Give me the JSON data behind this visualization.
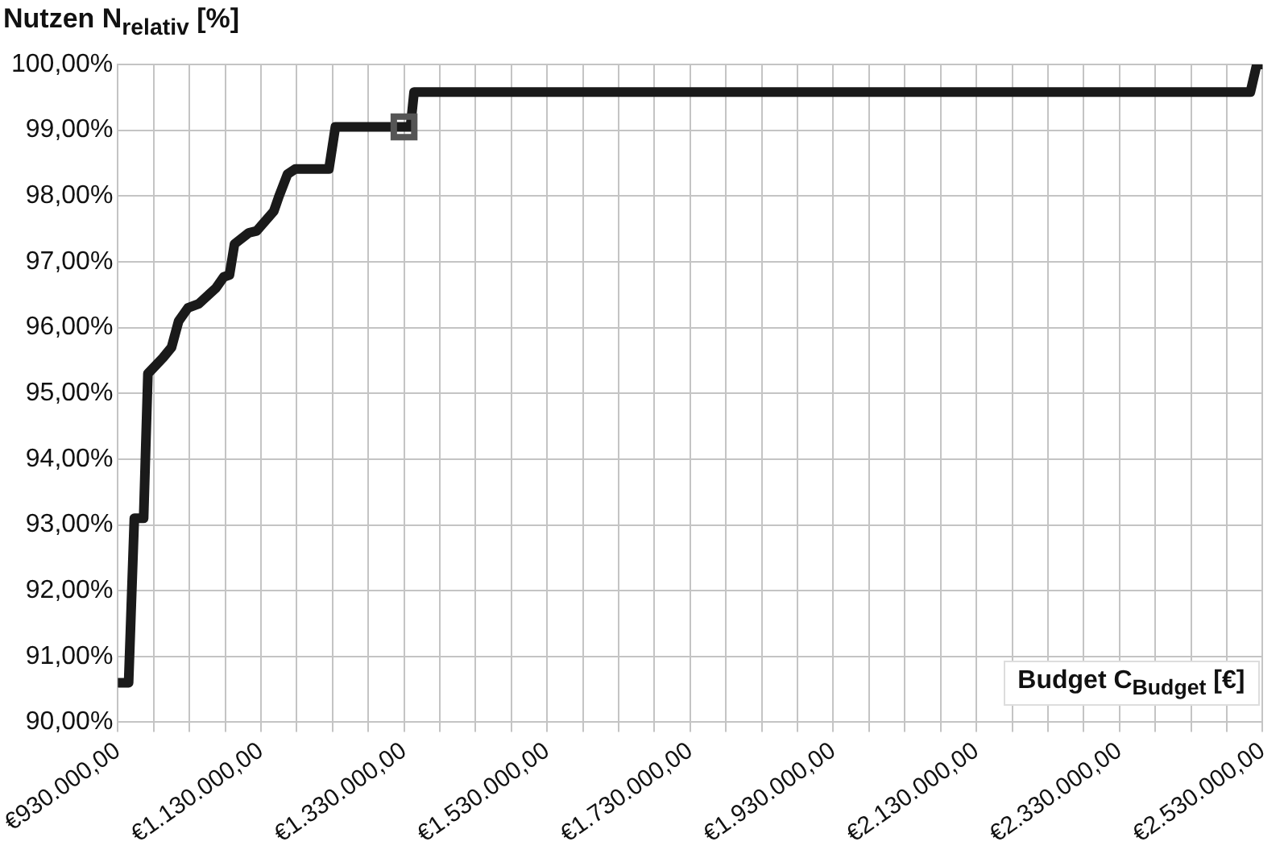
{
  "chart_data": {
    "type": "line",
    "title": "Nutzen N$_{relativ}$ [%]",
    "xlabel": "Budget C$_{Budget}$ [€]",
    "series": [
      {
        "color": "#1a1a1a",
        "x": [
          931000,
          945000,
          953000,
          966000,
          972000,
          993000,
          1005000,
          1015000,
          1028000,
          1043000,
          1067000,
          1078000,
          1086000,
          1093000,
          1113000,
          1124000,
          1148000,
          1155000,
          1167000,
          1178000,
          1225000,
          1234000,
          1329000,
          1339000,
          1344000,
          2513000,
          2522000,
          2530000
        ],
        "values": [
          90.6,
          90.6,
          93.1,
          93.1,
          95.3,
          95.54,
          95.7,
          96.1,
          96.3,
          96.36,
          96.6,
          96.77,
          96.8,
          97.27,
          97.44,
          97.47,
          97.77,
          97.99,
          98.33,
          98.41,
          98.41,
          99.05,
          99.05,
          99.05,
          99.58,
          99.58,
          100,
          100
        ]
      },
      {
        "type": "scatter",
        "marker": "square",
        "color": "#555555",
        "x": [
          1330000
        ],
        "values": [
          99.05
        ]
      }
    ],
    "xlim": [
      930000,
      2530000
    ],
    "xticks": [
      {
        "value": 930000,
        "label": "€930.000,00"
      },
      {
        "value": 980000,
        "label": null
      },
      {
        "value": 1030000,
        "label": null
      },
      {
        "value": 1080000,
        "label": null
      },
      {
        "value": 1130000,
        "label": "€1.130.000,00"
      },
      {
        "value": 1180000,
        "label": null
      },
      {
        "value": 1230000,
        "label": null
      },
      {
        "value": 1280000,
        "label": null
      },
      {
        "value": 1330000,
        "label": "€1.330.000,00"
      },
      {
        "value": 1380000,
        "label": null
      },
      {
        "value": 1430000,
        "label": null
      },
      {
        "value": 1480000,
        "label": null
      },
      {
        "value": 1530000,
        "label": "€1.530.000,00"
      },
      {
        "value": 1580000,
        "label": null
      },
      {
        "value": 1630000,
        "label": null
      },
      {
        "value": 1680000,
        "label": null
      },
      {
        "value": 1730000,
        "label": "€1.730.000,00"
      },
      {
        "value": 1780000,
        "label": null
      },
      {
        "value": 1830000,
        "label": null
      },
      {
        "value": 1880000,
        "label": null
      },
      {
        "value": 1930000,
        "label": "€1.930.000,00"
      },
      {
        "value": 1980000,
        "label": null
      },
      {
        "value": 2030000,
        "label": null
      },
      {
        "value": 2080000,
        "label": null
      },
      {
        "value": 2130000,
        "label": "€2.130.000,00"
      },
      {
        "value": 2180000,
        "label": null
      },
      {
        "value": 2230000,
        "label": null
      },
      {
        "value": 2280000,
        "label": null
      },
      {
        "value": 2330000,
        "label": "€2.330.000,00"
      },
      {
        "value": 2380000,
        "label": null
      },
      {
        "value": 2430000,
        "label": null
      },
      {
        "value": 2480000,
        "label": null
      },
      {
        "value": 2530000,
        "label": "€2.530.000,00"
      }
    ],
    "ylim": [
      90,
      100
    ],
    "yticks": [
      {
        "value": 90,
        "label": "90,00%"
      },
      {
        "value": 91,
        "label": "91,00%"
      },
      {
        "value": 92,
        "label": "92,00%"
      },
      {
        "value": 93,
        "label": "93,00%"
      },
      {
        "value": 94,
        "label": "94,00%"
      },
      {
        "value": 95,
        "label": "95,00%"
      },
      {
        "value": 96,
        "label": "96,00%"
      },
      {
        "value": 97,
        "label": "97,00%"
      },
      {
        "value": 98,
        "label": "98,00%"
      },
      {
        "value": 99,
        "label": "99,00%"
      },
      {
        "value": 100,
        "label": "100,00%"
      }
    ],
    "grid": true,
    "legend": false,
    "marker": "none",
    "line_style": "solid"
  }
}
